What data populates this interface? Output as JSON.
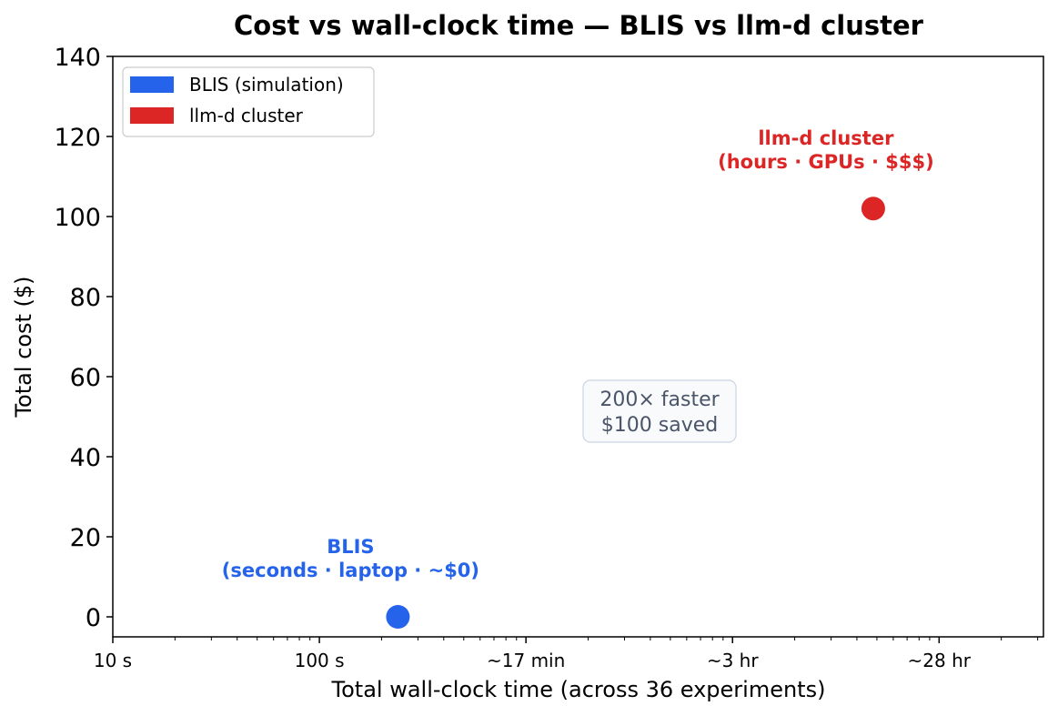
{
  "chart_data": {
    "type": "scatter",
    "title": "Cost vs wall-clock time — BLIS vs llm-d cluster",
    "xlabel": "Total wall-clock time (across 36 experiments)",
    "ylabel": "Total cost ($)",
    "x_scale": "log",
    "xlim": [
      10,
      320000
    ],
    "ylim": [
      -5,
      140
    ],
    "x_ticks": [
      {
        "value": 10,
        "label": "10 s"
      },
      {
        "value": 100,
        "label": "100 s"
      },
      {
        "value": 1000,
        "label": "~17 min"
      },
      {
        "value": 10000,
        "label": "~3 hr"
      },
      {
        "value": 100000,
        "label": "~28 hr"
      }
    ],
    "y_ticks": [
      0,
      20,
      40,
      60,
      80,
      100,
      120,
      140
    ],
    "series": [
      {
        "name": "BLIS (simulation)",
        "color": "#2563eb",
        "x": [
          240
        ],
        "y": [
          0
        ]
      },
      {
        "name": "llm-d cluster",
        "color": "#dc2626",
        "x": [
          48000
        ],
        "y": [
          102
        ]
      }
    ],
    "legend_position": "top-left",
    "annotations": [
      {
        "lines": [
          "llm-d cluster",
          "(hours · GPUs · $$$)"
        ],
        "color": "#dc2626"
      },
      {
        "lines": [
          "BLIS",
          "(seconds · laptop · ~$0)"
        ],
        "color": "#2563eb"
      }
    ],
    "text_box": {
      "lines": [
        "200× faster",
        "$100 saved"
      ]
    },
    "grid": false
  }
}
